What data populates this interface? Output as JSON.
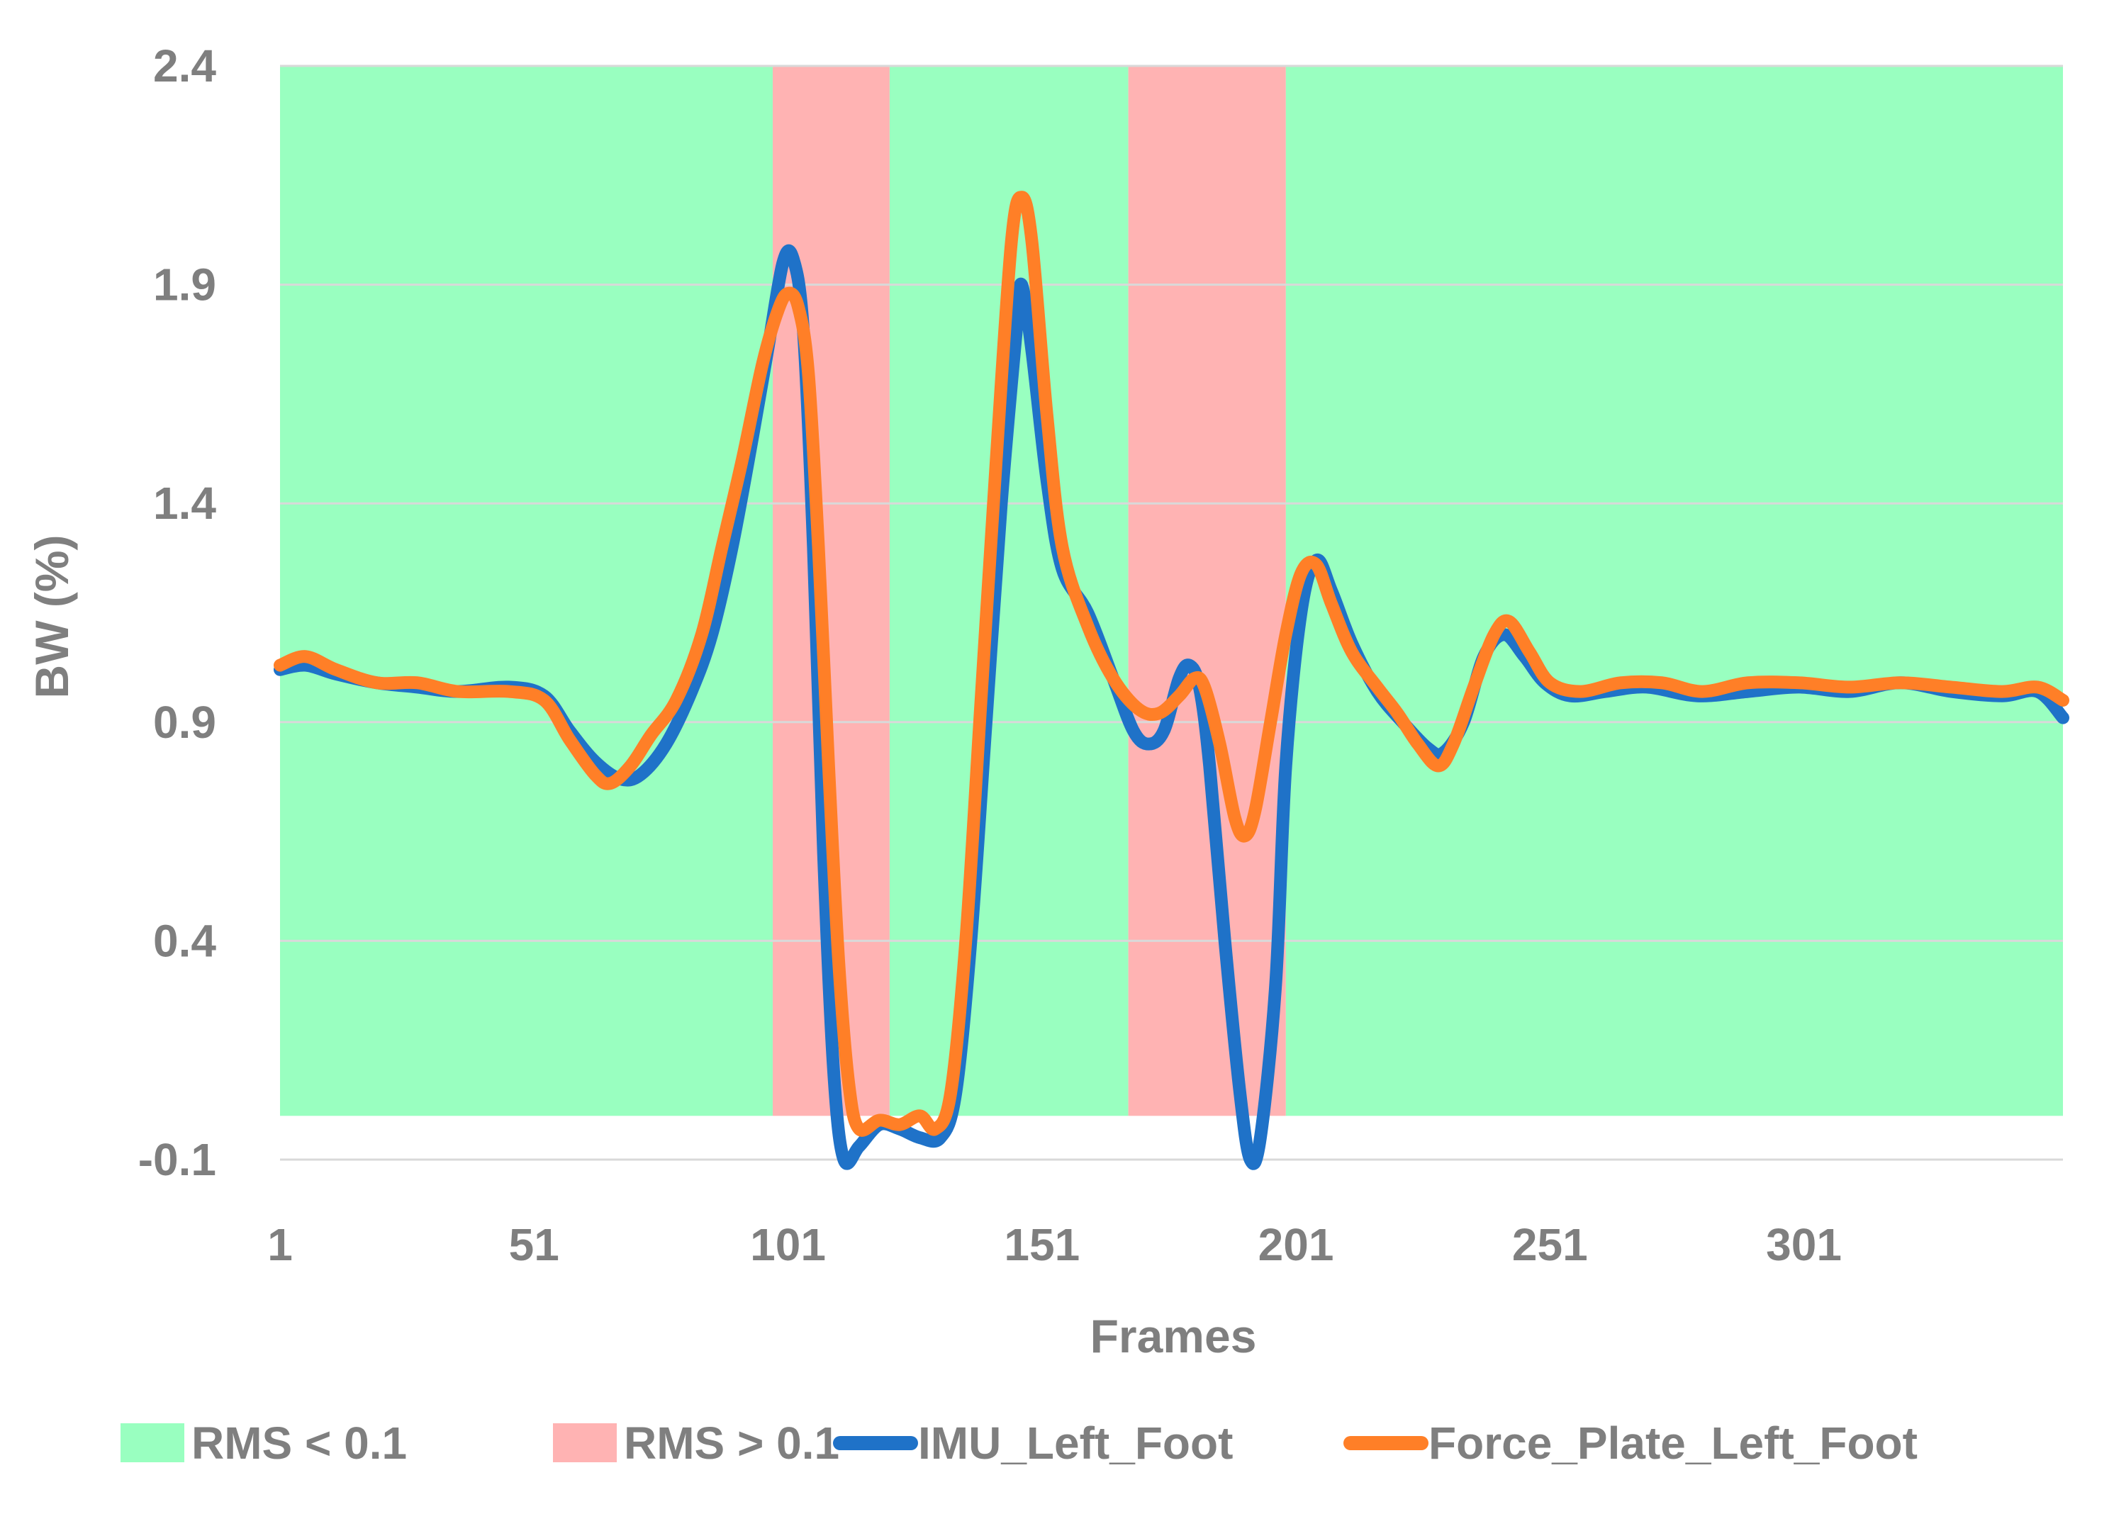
{
  "chart_data": {
    "type": "line",
    "title": "",
    "xlabel": "Frames",
    "ylabel": "BW (%)",
    "xlim": [
      1,
      352
    ],
    "ylim": [
      -0.1,
      2.4
    ],
    "yticks": [
      "2.4",
      "1.9",
      "1.4",
      "0.9",
      "0.4",
      "-0.1"
    ],
    "ytick_values": [
      2.4,
      1.9,
      1.4,
      0.9,
      0.4,
      -0.1
    ],
    "xticks": [
      "1",
      "51",
      "101",
      "151",
      "201",
      "251",
      "301"
    ],
    "xtick_values": [
      1,
      51,
      101,
      151,
      201,
      251,
      301
    ],
    "grid": "horizontal",
    "legend": "bottom",
    "bands": [
      {
        "name": "RMS < 0.1",
        "color": "#99ffc0",
        "ranges": [
          [
            1,
            98
          ],
          [
            121,
            168
          ],
          [
            199,
            352
          ]
        ],
        "y_range": [
          0,
          2.5
        ]
      },
      {
        "name": "RMS > 0.1",
        "color": "#ffb3b3",
        "ranges": [
          [
            98,
            121
          ],
          [
            168,
            199
          ]
        ],
        "y_range": [
          0,
          2.5
        ]
      }
    ],
    "series": [
      {
        "name": "IMU_Left_Foot",
        "color": "#1f72c8",
        "points": [
          [
            1,
            1.02
          ],
          [
            6,
            1.03
          ],
          [
            12,
            1.01
          ],
          [
            20,
            0.99
          ],
          [
            28,
            0.98
          ],
          [
            36,
            0.97
          ],
          [
            46,
            0.98
          ],
          [
            53,
            0.96
          ],
          [
            58,
            0.88
          ],
          [
            63,
            0.81
          ],
          [
            68,
            0.77
          ],
          [
            72,
            0.78
          ],
          [
            77,
            0.85
          ],
          [
            82,
            0.97
          ],
          [
            86,
            1.1
          ],
          [
            90,
            1.3
          ],
          [
            94,
            1.55
          ],
          [
            97,
            1.75
          ],
          [
            100,
            1.95
          ],
          [
            102,
            1.96
          ],
          [
            104,
            1.8
          ],
          [
            106,
            1.3
          ],
          [
            108,
            0.6
          ],
          [
            110,
            0.1
          ],
          [
            112,
            -0.1
          ],
          [
            115,
            -0.07
          ],
          [
            119,
            -0.02
          ],
          [
            123,
            -0.03
          ],
          [
            127,
            -0.05
          ],
          [
            131,
            -0.05
          ],
          [
            134,
            0.05
          ],
          [
            137,
            0.4
          ],
          [
            140,
            0.9
          ],
          [
            143,
            1.4
          ],
          [
            146,
            1.8
          ],
          [
            147,
            1.9
          ],
          [
            149,
            1.75
          ],
          [
            152,
            1.45
          ],
          [
            155,
            1.25
          ],
          [
            160,
            1.15
          ],
          [
            165,
            1.0
          ],
          [
            169,
            0.88
          ],
          [
            172,
            0.85
          ],
          [
            175,
            0.88
          ],
          [
            178,
            1.0
          ],
          [
            180,
            1.03
          ],
          [
            182,
            0.98
          ],
          [
            184,
            0.8
          ],
          [
            187,
            0.4
          ],
          [
            190,
            0.05
          ],
          [
            192,
            -0.1
          ],
          [
            194,
            -0.05
          ],
          [
            197,
            0.3
          ],
          [
            199,
            0.8
          ],
          [
            202,
            1.15
          ],
          [
            205,
            1.27
          ],
          [
            208,
            1.2
          ],
          [
            212,
            1.08
          ],
          [
            217,
            0.97
          ],
          [
            222,
            0.9
          ],
          [
            227,
            0.84
          ],
          [
            230,
            0.83
          ],
          [
            234,
            0.9
          ],
          [
            238,
            1.05
          ],
          [
            242,
            1.1
          ],
          [
            246,
            1.05
          ],
          [
            250,
            0.99
          ],
          [
            255,
            0.96
          ],
          [
            262,
            0.97
          ],
          [
            270,
            0.98
          ],
          [
            280,
            0.96
          ],
          [
            290,
            0.97
          ],
          [
            300,
            0.98
          ],
          [
            310,
            0.97
          ],
          [
            320,
            0.99
          ],
          [
            330,
            0.97
          ],
          [
            340,
            0.96
          ],
          [
            347,
            0.97
          ],
          [
            352,
            0.91
          ]
        ]
      },
      {
        "name": "Force_Plate_Left_Foot",
        "color": "#ff7f27",
        "points": [
          [
            1,
            1.03
          ],
          [
            6,
            1.05
          ],
          [
            12,
            1.02
          ],
          [
            20,
            0.99
          ],
          [
            28,
            0.99
          ],
          [
            36,
            0.97
          ],
          [
            46,
            0.97
          ],
          [
            53,
            0.95
          ],
          [
            58,
            0.86
          ],
          [
            63,
            0.78
          ],
          [
            66,
            0.76
          ],
          [
            70,
            0.8
          ],
          [
            74,
            0.87
          ],
          [
            79,
            0.95
          ],
          [
            84,
            1.1
          ],
          [
            88,
            1.3
          ],
          [
            92,
            1.5
          ],
          [
            96,
            1.72
          ],
          [
            99,
            1.84
          ],
          [
            101,
            1.88
          ],
          [
            103,
            1.85
          ],
          [
            105,
            1.7
          ],
          [
            107,
            1.3
          ],
          [
            109,
            0.8
          ],
          [
            111,
            0.35
          ],
          [
            113,
            0.07
          ],
          [
            115,
            -0.03
          ],
          [
            119,
            -0.01
          ],
          [
            123,
            -0.02
          ],
          [
            127,
            0.0
          ],
          [
            130,
            -0.03
          ],
          [
            133,
            0.05
          ],
          [
            136,
            0.4
          ],
          [
            139,
            0.95
          ],
          [
            142,
            1.5
          ],
          [
            145,
            2.0
          ],
          [
            147,
            2.1
          ],
          [
            149,
            2.0
          ],
          [
            152,
            1.6
          ],
          [
            155,
            1.3
          ],
          [
            160,
            1.12
          ],
          [
            165,
            1.0
          ],
          [
            170,
            0.93
          ],
          [
            174,
            0.92
          ],
          [
            178,
            0.96
          ],
          [
            181,
            1.0
          ],
          [
            183,
            0.98
          ],
          [
            186,
            0.85
          ],
          [
            189,
            0.68
          ],
          [
            191,
            0.64
          ],
          [
            193,
            0.7
          ],
          [
            196,
            0.9
          ],
          [
            199,
            1.1
          ],
          [
            202,
            1.24
          ],
          [
            205,
            1.26
          ],
          [
            208,
            1.17
          ],
          [
            212,
            1.06
          ],
          [
            217,
            0.98
          ],
          [
            221,
            0.92
          ],
          [
            225,
            0.85
          ],
          [
            229,
            0.8
          ],
          [
            232,
            0.85
          ],
          [
            236,
            0.98
          ],
          [
            240,
            1.1
          ],
          [
            243,
            1.13
          ],
          [
            247,
            1.06
          ],
          [
            251,
            0.99
          ],
          [
            257,
            0.97
          ],
          [
            265,
            0.99
          ],
          [
            273,
            0.99
          ],
          [
            281,
            0.97
          ],
          [
            290,
            0.99
          ],
          [
            300,
            0.99
          ],
          [
            310,
            0.98
          ],
          [
            320,
            0.99
          ],
          [
            330,
            0.98
          ],
          [
            340,
            0.97
          ],
          [
            347,
            0.98
          ],
          [
            352,
            0.95
          ]
        ]
      }
    ]
  }
}
